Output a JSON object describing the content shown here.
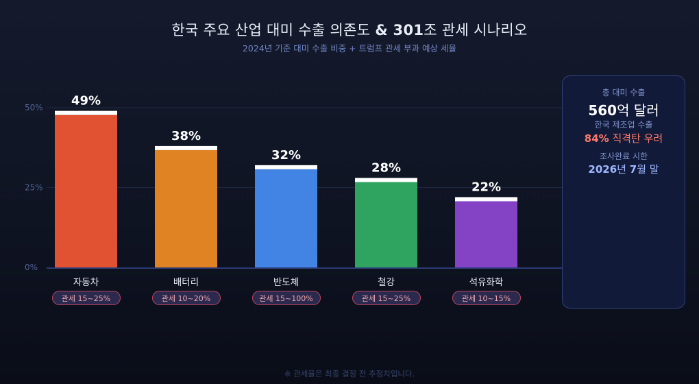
{
  "header": {
    "title_a": "한국 주요 산업 대미 수출 의존도 ",
    "title_b": "& 301",
    "title_c": "조 관세 시나리오",
    "subtitle": "2024년 기준 대미 수출 비중 + 트럼프 관세 부과 예상 세율"
  },
  "chart_data": {
    "type": "bar",
    "categories": [
      "자동차",
      "배터리",
      "반도체",
      "철강",
      "석유화학"
    ],
    "values": [
      49,
      38,
      32,
      28,
      22
    ],
    "value_labels": [
      "49%",
      "38%",
      "32%",
      "28%",
      "22%"
    ],
    "tariffs": [
      "관세 15~25%",
      "관세 10~20%",
      "관세 15~100%",
      "관세 15~25%",
      "관세 10~15%"
    ],
    "colors": [
      "#e05232",
      "#e08322",
      "#4284e4",
      "#2fa460",
      "#8442c4"
    ],
    "cap_color": "#ffffff",
    "yticks": [
      0,
      25,
      50
    ],
    "ytick_labels": [
      "0%",
      "25%",
      "50%"
    ],
    "ylim": [
      0,
      50
    ],
    "grid": true
  },
  "card": {
    "label1": "총 대미 수출",
    "big_num": "560",
    "big_unit": "억 달러",
    "label2": "한국 제조업 수출",
    "red_num": "84%",
    "red_text": " 직격탄 우려",
    "label3": "조사완료 시한",
    "date_year": "2026",
    "date_year_unit": "년 ",
    "date_month": "7",
    "date_month_unit": "월 말"
  },
  "footnote": "※ 관세율은 최종 결정 전 추정치입니다."
}
